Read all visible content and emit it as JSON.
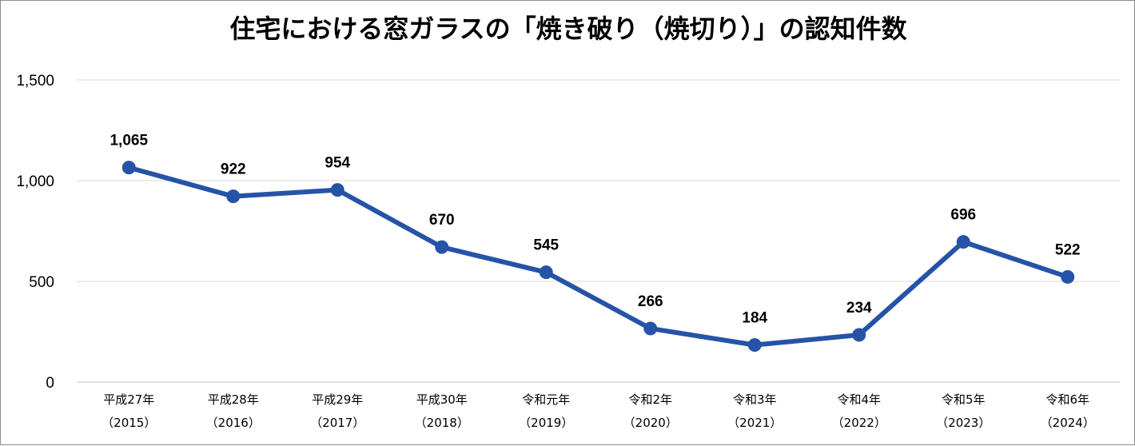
{
  "chart_data": {
    "type": "line",
    "title": "住宅における窓ガラスの「焼き破り（焼切り）」の認知件数",
    "categories": [
      [
        "平成27年",
        "（2015）"
      ],
      [
        "平成28年",
        "（2016）"
      ],
      [
        "平成29年",
        "（2017）"
      ],
      [
        "平成30年",
        "（2018）"
      ],
      [
        "令和元年",
        "（2019）"
      ],
      [
        "令和2年",
        "（2020）"
      ],
      [
        "令和3年",
        "（2021）"
      ],
      [
        "令和4年",
        "（2022）"
      ],
      [
        "令和5年",
        "（2023）"
      ],
      [
        "令和6年",
        "（2024）"
      ]
    ],
    "values": [
      1065,
      922,
      954,
      670,
      545,
      266,
      184,
      234,
      696,
      522
    ],
    "data_labels": [
      "1,065",
      "922",
      "954",
      "670",
      "545",
      "266",
      "184",
      "234",
      "696",
      "522"
    ],
    "ylim": [
      0,
      1500
    ],
    "yticks": [
      0,
      500,
      1000,
      1500
    ],
    "ytick_labels": [
      "0",
      "500",
      "1,000",
      "1,500"
    ],
    "grid": true,
    "colors": {
      "line": "#2553a7",
      "grid": "#d9d9d9",
      "axis": "#bfbfbf"
    }
  }
}
